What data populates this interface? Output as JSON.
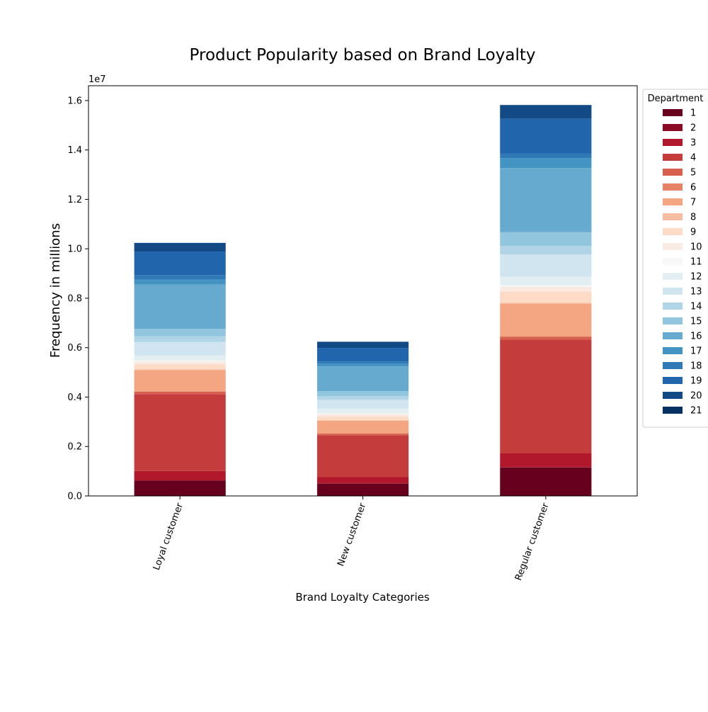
{
  "chart_data": {
    "type": "bar",
    "stacked": true,
    "title": "Product Popularity based on Brand Loyalty",
    "xlabel": "Brand Loyalty Categories",
    "ylabel": "Frequency in millions",
    "y_offset_text": "1e7",
    "categories": [
      "Loyal customer",
      "New customer",
      "Regular customer"
    ],
    "ylim": [
      0,
      16600000
    ],
    "yticks": [
      0,
      2000000,
      4000000,
      6000000,
      8000000,
      10000000,
      12000000,
      14000000,
      16000000
    ],
    "ytick_labels": [
      "0.0",
      "0.2",
      "0.4",
      "0.6",
      "0.8",
      "1.0",
      "1.2",
      "1.4",
      "1.6"
    ],
    "grid": false,
    "legend": {
      "title": "Department",
      "position": "outside-right"
    },
    "series": [
      {
        "name": "1",
        "color": "#67001f",
        "values": [
          620000,
          500000,
          1150000
        ]
      },
      {
        "name": "2",
        "color": "#8a0b25",
        "values": [
          10000,
          10000,
          20000
        ]
      },
      {
        "name": "3",
        "color": "#b2182b",
        "values": [
          380000,
          250000,
          550000
        ]
      },
      {
        "name": "4",
        "color": "#c43c3c",
        "values": [
          3110000,
          1700000,
          4600000
        ]
      },
      {
        "name": "5",
        "color": "#d6604d",
        "values": [
          100000,
          50000,
          120000
        ]
      },
      {
        "name": "6",
        "color": "#e58267",
        "values": [
          20000,
          30000,
          30000
        ]
      },
      {
        "name": "7",
        "color": "#f4a582",
        "values": [
          850000,
          500000,
          1300000
        ]
      },
      {
        "name": "8",
        "color": "#f7bea3",
        "values": [
          30000,
          20000,
          50000
        ]
      },
      {
        "name": "9",
        "color": "#fddbc7",
        "values": [
          210000,
          150000,
          450000
        ]
      },
      {
        "name": "10",
        "color": "#f9ebe3",
        "values": [
          110000,
          100000,
          200000
        ]
      },
      {
        "name": "11",
        "color": "#f7f7f7",
        "values": [
          30000,
          30000,
          50000
        ]
      },
      {
        "name": "12",
        "color": "#e3eef3",
        "values": [
          210000,
          200000,
          350000
        ]
      },
      {
        "name": "13",
        "color": "#d1e5f0",
        "values": [
          550000,
          350000,
          900000
        ]
      },
      {
        "name": "14",
        "color": "#b1d5e7",
        "values": [
          230000,
          150000,
          350000
        ]
      },
      {
        "name": "15",
        "color": "#92c5de",
        "values": [
          300000,
          200000,
          550000
        ]
      },
      {
        "name": "16",
        "color": "#67aad0",
        "values": [
          1800000,
          1000000,
          2600000
        ]
      },
      {
        "name": "17",
        "color": "#4393c3",
        "values": [
          200000,
          100000,
          400000
        ]
      },
      {
        "name": "18",
        "color": "#3079b7",
        "values": [
          180000,
          100000,
          180000
        ]
      },
      {
        "name": "19",
        "color": "#2166ac",
        "values": [
          950000,
          550000,
          1420000
        ]
      },
      {
        "name": "20",
        "color": "#134a85",
        "values": [
          350000,
          250000,
          550000
        ]
      },
      {
        "name": "21",
        "color": "#053061",
        "values": [
          0,
          0,
          0
        ]
      }
    ]
  }
}
